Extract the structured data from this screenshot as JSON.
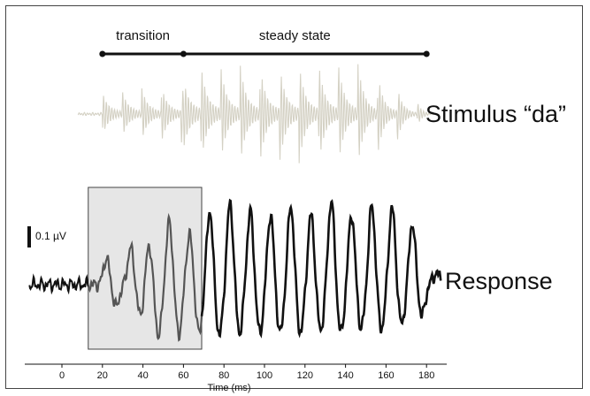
{
  "chart_data": {
    "type": "line",
    "segments": {
      "transition_label": "transition",
      "steady_label": "steady state",
      "transition_ms": [
        20,
        60
      ],
      "steady_ms": [
        60,
        180
      ]
    },
    "stimulus": {
      "name": "Stimulus “da”",
      "start_ms": 8,
      "end_ms": 184,
      "color": "#d4d1c4"
    },
    "response": {
      "name": "Response",
      "color": "#111111",
      "highlight_color": "#555555",
      "highlight_ms": [
        13,
        69
      ],
      "highlight_fill": "#e6e6e6",
      "peaks_ms": [
        22,
        34,
        43,
        53,
        63,
        73,
        83,
        93,
        103,
        113,
        123,
        133,
        143,
        153,
        163,
        173
      ]
    },
    "scale_bar_label": "0.1 µV",
    "xaxis": {
      "label": "Time (ms)",
      "ticks": [
        0,
        20,
        40,
        60,
        80,
        100,
        120,
        140,
        160,
        180
      ],
      "range": [
        -17,
        190
      ]
    }
  }
}
